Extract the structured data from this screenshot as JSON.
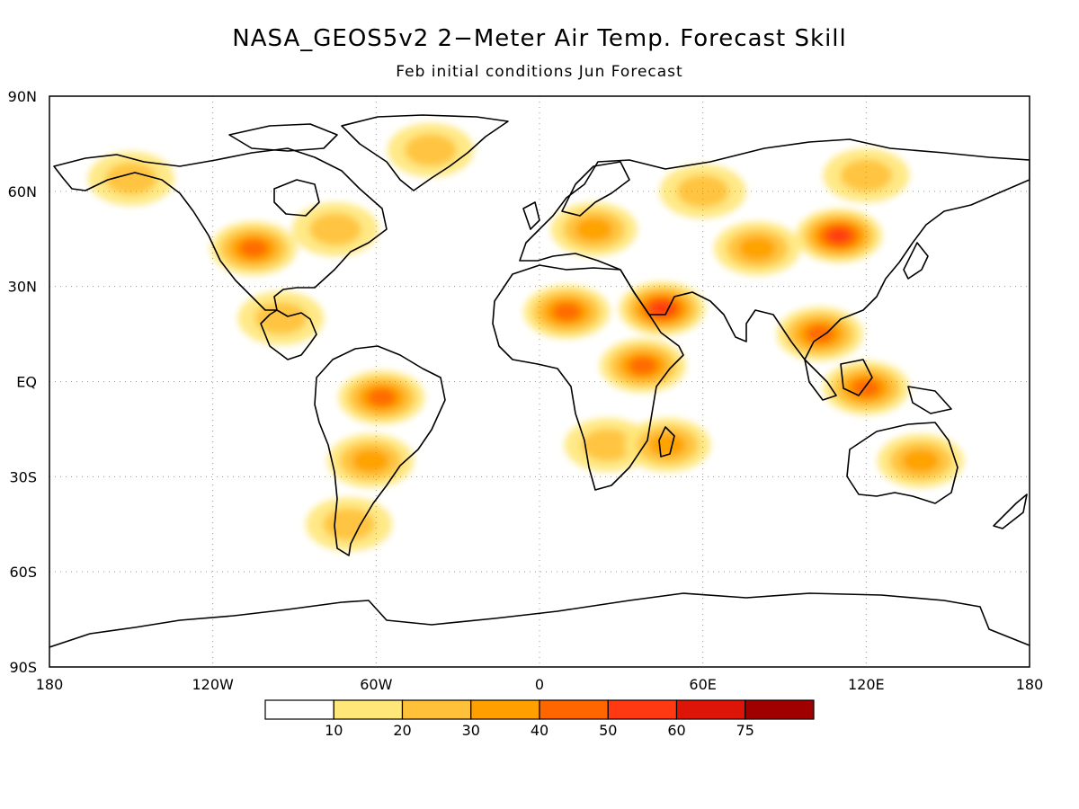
{
  "title": "NASA_GEOS5v2 2−Meter Air Temp. Forecast Skill",
  "subtitle": "Feb initial conditions  Jun Forecast",
  "map": {
    "lat_labels": [
      "90N",
      "60N",
      "30N",
      "EQ",
      "30S",
      "60S",
      "90S"
    ],
    "lon_labels": [
      "180",
      "120W",
      "60W",
      "0",
      "60E",
      "120E",
      "180"
    ]
  },
  "colorbar": {
    "labels": [
      "10",
      "20",
      "30",
      "40",
      "50",
      "60",
      "75"
    ],
    "colors": [
      "#ffffff",
      "#ffe779",
      "#ffc13a",
      "#ffa000",
      "#ff6600",
      "#ff3a12",
      "#dd1408",
      "#a00000"
    ]
  },
  "skill_regions": [
    {
      "name": "western-north-america",
      "lon": -105,
      "lat": 42,
      "level": 4
    },
    {
      "name": "eastern-north-america",
      "lon": -75,
      "lat": 48,
      "level": 2
    },
    {
      "name": "alaska",
      "lon": -150,
      "lat": 64,
      "level": 2
    },
    {
      "name": "greenland",
      "lon": -40,
      "lat": 73,
      "level": 2
    },
    {
      "name": "central-america",
      "lon": -95,
      "lat": 20,
      "level": 2
    },
    {
      "name": "amazon",
      "lon": -58,
      "lat": -5,
      "level": 4
    },
    {
      "name": "southern-south-america",
      "lon": -62,
      "lat": -25,
      "level": 3
    },
    {
      "name": "patagonia",
      "lon": -70,
      "lat": -45,
      "level": 2
    },
    {
      "name": "sahara",
      "lon": 10,
      "lat": 22,
      "level": 4
    },
    {
      "name": "arabia",
      "lon": 45,
      "lat": 23,
      "level": 5
    },
    {
      "name": "east-africa",
      "lon": 38,
      "lat": 5,
      "level": 4
    },
    {
      "name": "southern-africa",
      "lon": 25,
      "lat": -20,
      "level": 2
    },
    {
      "name": "madagascar",
      "lon": 47,
      "lat": -20,
      "level": 3
    },
    {
      "name": "europe",
      "lon": 20,
      "lat": 48,
      "level": 3
    },
    {
      "name": "russia",
      "lon": 60,
      "lat": 60,
      "level": 2
    },
    {
      "name": "central-asia",
      "lon": 80,
      "lat": 42,
      "level": 3
    },
    {
      "name": "mongolia",
      "lon": 110,
      "lat": 46,
      "level": 5
    },
    {
      "name": "southeast-asia",
      "lon": 103,
      "lat": 15,
      "level": 4
    },
    {
      "name": "indonesia",
      "lon": 120,
      "lat": -2,
      "level": 4
    },
    {
      "name": "australia",
      "lon": 140,
      "lat": -25,
      "level": 3
    },
    {
      "name": "siberia",
      "lon": 120,
      "lat": 65,
      "level": 2
    }
  ]
}
